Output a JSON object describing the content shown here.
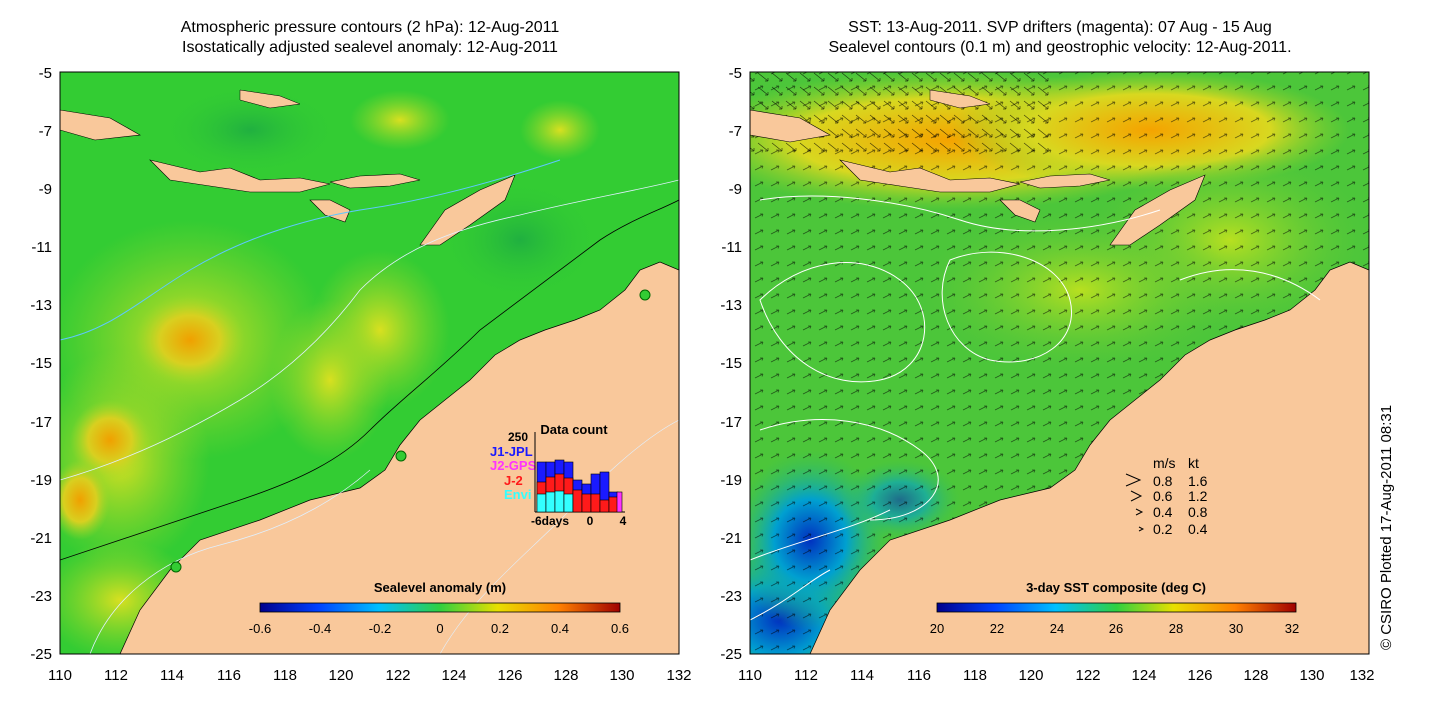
{
  "left_panel": {
    "title_line1": "Atmospheric pressure contours (2 hPa): 12-Aug-2011",
    "title_line2": "Isostatically adjusted sealevel anomaly: 12-Aug-2011",
    "colorbar_title": "Sealevel anomaly (m)",
    "colorbar_ticks": [
      "-0.6",
      "-0.4",
      "-0.2",
      "0",
      "0.2",
      "0.4",
      "0.6"
    ],
    "inset": {
      "title": "Data count",
      "max_label": "250",
      "legend": [
        {
          "label": "J1-JPL",
          "color": "#1a1aff"
        },
        {
          "label": "J2-GPS",
          "color": "#ff33ff"
        },
        {
          "label": "J-2",
          "color": "#ff1a1a"
        },
        {
          "label": "Envi",
          "color": "#33ffff"
        }
      ],
      "axis_labels": [
        "-6days",
        "0",
        "4"
      ]
    }
  },
  "right_panel": {
    "title_line1": "SST: 13-Aug-2011. SVP drifters (magenta): 07 Aug - 15 Aug",
    "title_line2": "Sealevel contours (0.1 m) and geostrophic velocity: 12-Aug-2011.",
    "colorbar_title": "3-day SST composite (deg C)",
    "colorbar_ticks": [
      "20",
      "22",
      "24",
      "26",
      "28",
      "30",
      "32"
    ],
    "velocity_key": {
      "header_ms": "m/s",
      "header_kt": "kt",
      "rows": [
        {
          "ms": "0.8",
          "kt": "1.6"
        },
        {
          "ms": "0.6",
          "kt": "1.2"
        },
        {
          "ms": "0.4",
          "kt": "0.8"
        },
        {
          "ms": "0.2",
          "kt": "0.4"
        }
      ]
    }
  },
  "axes": {
    "lat_ticks": [
      "-5",
      "-7",
      "-9",
      "-11",
      "-13",
      "-15",
      "-17",
      "-19",
      "-21",
      "-23",
      "-25"
    ],
    "lon_ticks": [
      "110",
      "112",
      "114",
      "116",
      "118",
      "120",
      "122",
      "124",
      "126",
      "128",
      "130",
      "132"
    ]
  },
  "credit": "© CSIRO Plotted 17-Aug-2011 08:31",
  "colors": {
    "land": "#f9c89b",
    "ocean_green": "#33cc33",
    "sst_orange": "#f5a300"
  }
}
